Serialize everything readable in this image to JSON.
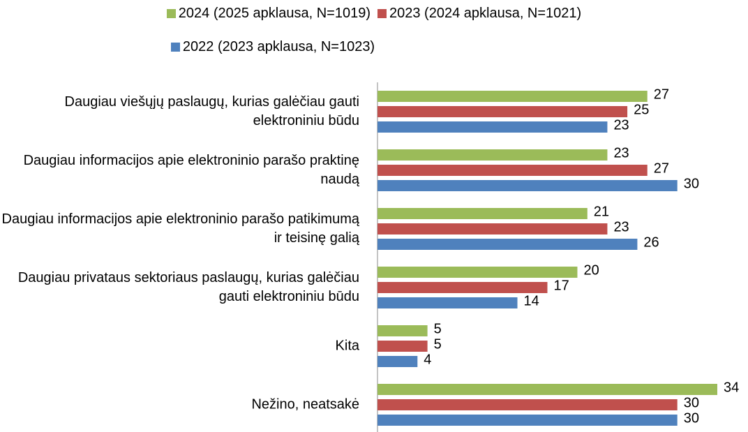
{
  "chart_data": {
    "type": "hbar",
    "categories": [
      "Daugiau viešųjų paslaugų, kurias galėčiau gauti elektroniniu būdu",
      "Daugiau informacijos apie elektroninio parašo praktinę naudą",
      "Daugiau informacijos apie elektroninio parašo patikimumą ir teisinę galią",
      "Daugiau privataus sektoriaus paslaugų, kurias galėčiau gauti elektroniniu būdu",
      "Kita",
      "Nežino, neatsakė"
    ],
    "series": [
      {
        "name": "2024 (2025 apklausa, N=1019)",
        "color": "#9bbb59",
        "values": [
          27,
          23,
          21,
          20,
          5,
          34
        ]
      },
      {
        "name": "2023 (2024 apklausa, N=1021)",
        "color": "#c0504d",
        "values": [
          25,
          27,
          23,
          17,
          5,
          30
        ]
      },
      {
        "name": "2022 (2023 apklausa, N=1023)",
        "color": "#4f81bd",
        "values": [
          23,
          30,
          26,
          14,
          4,
          30
        ]
      }
    ]
  }
}
